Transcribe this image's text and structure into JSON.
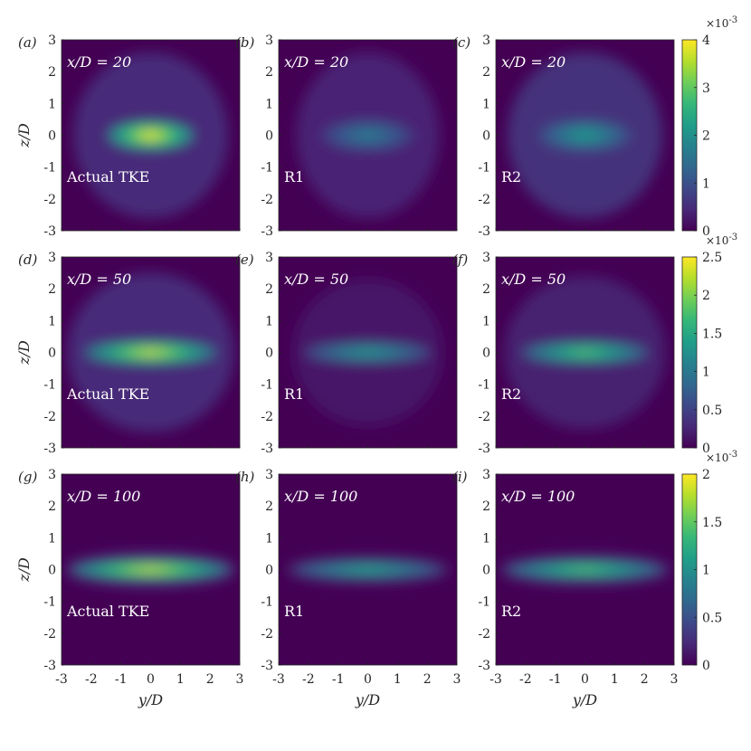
{
  "chart_data": [
    {
      "type": "heatmap",
      "panel": "(a)",
      "annotation": "x/D = 20",
      "label": "Actual TKE",
      "xlabel": "",
      "ylabel": "z/D",
      "xlim": [
        -3,
        3
      ],
      "ylim": [
        -3,
        3
      ],
      "clim": [
        0,
        0.004
      ],
      "peak_fraction": 1.0,
      "core": {
        "halfwidth_y": 1.3,
        "halfwidth_z": 0.35
      },
      "halo": {
        "halfwidth_y": 2.6,
        "halfwidth_z": 2.6,
        "level_fraction": 0.12
      }
    },
    {
      "type": "heatmap",
      "panel": "(b)",
      "annotation": "x/D = 20",
      "label": "R1",
      "xlabel": "",
      "ylabel": "",
      "xlim": [
        -3,
        3
      ],
      "ylim": [
        -3,
        3
      ],
      "clim": [
        0,
        0.004
      ],
      "peak_fraction": 0.42,
      "core": {
        "halfwidth_y": 1.4,
        "halfwidth_z": 0.4
      },
      "halo": {
        "halfwidth_y": 2.4,
        "halfwidth_z": 2.6,
        "level_fraction": 0.1
      }
    },
    {
      "type": "heatmap",
      "panel": "(c)",
      "annotation": "x/D = 20",
      "label": "R2",
      "xlabel": "",
      "ylabel": "",
      "xlim": [
        -3,
        3
      ],
      "ylim": [
        -3,
        3
      ],
      "clim": [
        0,
        0.004
      ],
      "peak_fraction": 0.55,
      "core": {
        "halfwidth_y": 1.4,
        "halfwidth_z": 0.4
      },
      "halo": {
        "halfwidth_y": 2.6,
        "halfwidth_z": 2.6,
        "level_fraction": 0.14
      }
    },
    {
      "type": "heatmap",
      "panel": "(d)",
      "annotation": "x/D = 50",
      "label": "Actual TKE",
      "xlabel": "",
      "ylabel": "z/D",
      "xlim": [
        -3,
        3
      ],
      "ylim": [
        -3,
        3
      ],
      "clim": [
        0,
        0.0025
      ],
      "peak_fraction": 0.95,
      "core": {
        "halfwidth_y": 2.0,
        "halfwidth_z": 0.28
      },
      "halo": {
        "halfwidth_y": 2.8,
        "halfwidth_z": 2.5,
        "level_fraction": 0.12
      }
    },
    {
      "type": "heatmap",
      "panel": "(e)",
      "annotation": "x/D = 50",
      "label": "R1",
      "xlabel": "",
      "ylabel": "",
      "xlim": [
        -3,
        3
      ],
      "ylim": [
        -3,
        3
      ],
      "clim": [
        0,
        0.0025
      ],
      "peak_fraction": 0.55,
      "core": {
        "halfwidth_y": 1.9,
        "halfwidth_z": 0.26
      },
      "halo": {
        "halfwidth_y": 2.5,
        "halfwidth_z": 2.3,
        "level_fraction": 0.06
      }
    },
    {
      "type": "heatmap",
      "panel": "(f)",
      "annotation": "x/D = 50",
      "label": "R2",
      "xlabel": "",
      "ylabel": "",
      "xlim": [
        -3,
        3
      ],
      "ylim": [
        -3,
        3
      ],
      "clim": [
        0,
        0.0025
      ],
      "peak_fraction": 0.75,
      "core": {
        "halfwidth_y": 1.9,
        "halfwidth_z": 0.27
      },
      "halo": {
        "halfwidth_y": 2.7,
        "halfwidth_z": 2.4,
        "level_fraction": 0.09
      }
    },
    {
      "type": "heatmap",
      "panel": "(g)",
      "annotation": "x/D = 100",
      "label": "Actual TKE",
      "xlabel": "y/D",
      "ylabel": "z/D",
      "xlim": [
        -3,
        3
      ],
      "ylim": [
        -3,
        3
      ],
      "clim": [
        0,
        0.002
      ],
      "peak_fraction": 0.95,
      "core": {
        "halfwidth_y": 2.4,
        "halfwidth_z": 0.24
      },
      "halo": {
        "halfwidth_y": 2.9,
        "halfwidth_z": 0.6,
        "level_fraction": 0.1
      }
    },
    {
      "type": "heatmap",
      "panel": "(h)",
      "annotation": "x/D = 100",
      "label": "R1",
      "xlabel": "y/D",
      "ylabel": "",
      "xlim": [
        -3,
        3
      ],
      "ylim": [
        -3,
        3
      ],
      "clim": [
        0,
        0.002
      ],
      "peak_fraction": 0.6,
      "core": {
        "halfwidth_y": 2.3,
        "halfwidth_z": 0.22
      },
      "halo": {
        "halfwidth_y": 2.8,
        "halfwidth_z": 0.5,
        "level_fraction": 0.06
      }
    },
    {
      "type": "heatmap",
      "panel": "(i)",
      "annotation": "x/D = 100",
      "label": "R2",
      "xlabel": "y/D",
      "ylabel": "",
      "xlim": [
        -3,
        3
      ],
      "ylim": [
        -3,
        3
      ],
      "clim": [
        0,
        0.002
      ],
      "peak_fraction": 0.75,
      "core": {
        "halfwidth_y": 2.4,
        "halfwidth_z": 0.23
      },
      "halo": {
        "halfwidth_y": 2.9,
        "halfwidth_z": 0.55,
        "level_fraction": 0.08
      }
    }
  ],
  "axes": {
    "ticks": [
      "-3",
      "-2",
      "-1",
      "0",
      "1",
      "2",
      "3"
    ],
    "xlabel": "y/D",
    "ylabel": "z/D"
  },
  "colorbars": [
    {
      "row": 0,
      "ticks": [
        "0",
        "1",
        "2",
        "3",
        "4"
      ],
      "tick_values": [
        0,
        1,
        2,
        3,
        4
      ],
      "max": 4,
      "exponent_label": "×10",
      "exponent": "-3"
    },
    {
      "row": 1,
      "ticks": [
        "0",
        "0.5",
        "1",
        "1.5",
        "2",
        "2.5"
      ],
      "tick_values": [
        0,
        0.5,
        1,
        1.5,
        2,
        2.5
      ],
      "max": 2.5,
      "exponent_label": "×10",
      "exponent": "-3"
    },
    {
      "row": 2,
      "ticks": [
        "0",
        "0.5",
        "1",
        "1.5",
        "2"
      ],
      "tick_values": [
        0,
        0.5,
        1,
        1.5,
        2
      ],
      "max": 2,
      "exponent_label": "×10",
      "exponent": "-3"
    }
  ],
  "colormap": [
    "#440154",
    "#482878",
    "#3e4989",
    "#31688e",
    "#26828e",
    "#1f9e89",
    "#35b779",
    "#6ece58",
    "#b5de2b",
    "#fde725"
  ]
}
